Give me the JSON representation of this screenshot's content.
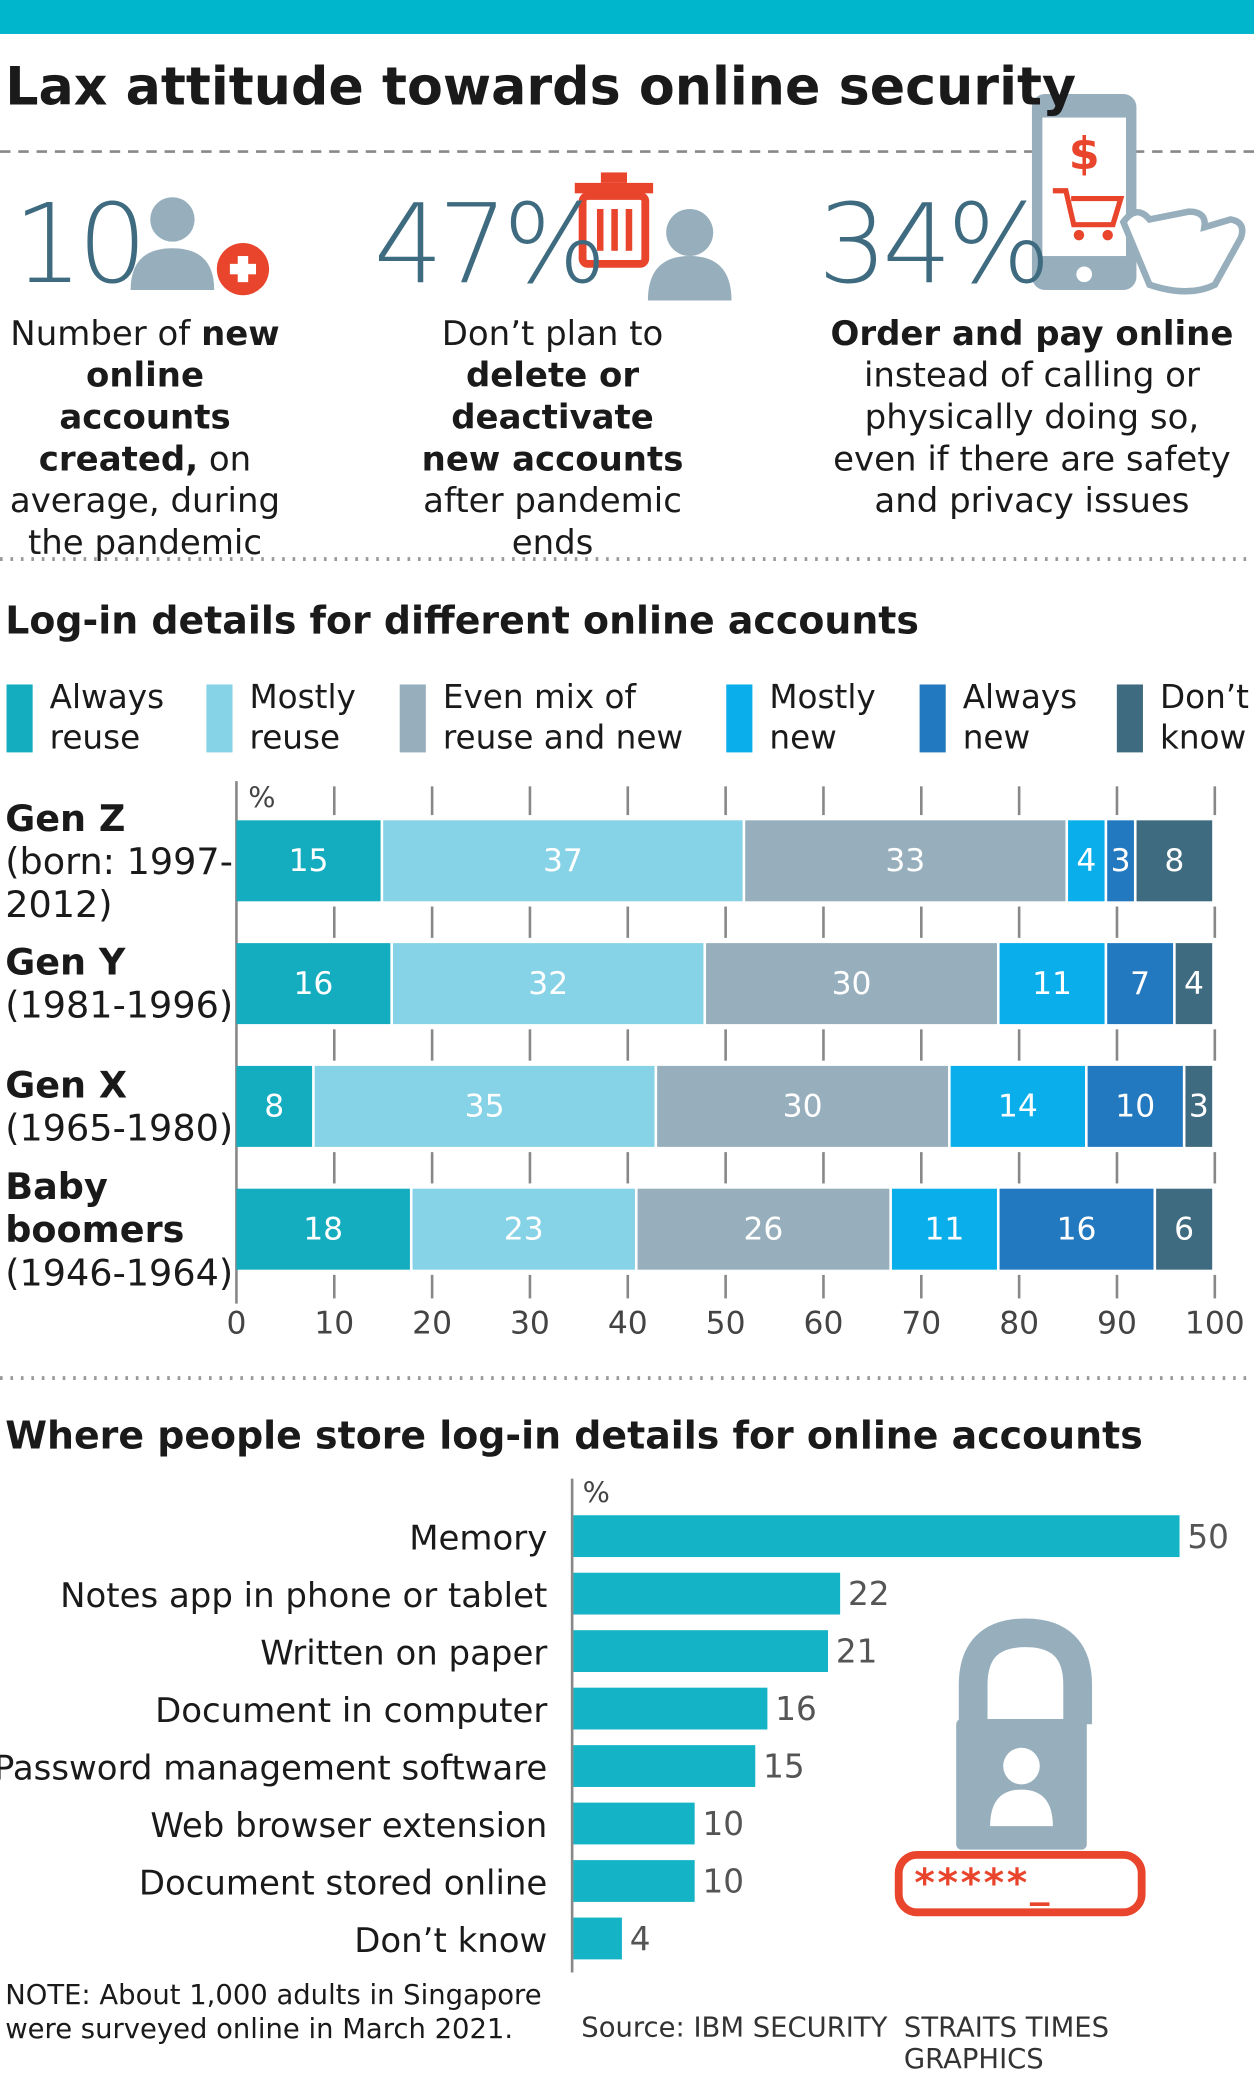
{
  "title": "Lax attitude towards online security",
  "stats": [
    {
      "value": "10",
      "text": [
        {
          "text": "Number of "
        },
        {
          "text": "new online accounts created,",
          "bold": true
        },
        {
          "text": " on average, during the pandemic"
        }
      ]
    },
    {
      "value": "47%",
      "text": [
        {
          "text": "Don’t plan to "
        },
        {
          "text": "delete or deactivate new accounts",
          "bold": true
        },
        {
          "text": " after pandemic ends"
        }
      ]
    },
    {
      "value": "34%",
      "text": [
        {
          "text": "Order and pay online",
          "bold": true
        },
        {
          "text": " instead of calling or physically doing so, even if there are safety and privacy issues"
        }
      ]
    }
  ],
  "chart_data": [
    {
      "type": "stacked-bar",
      "orientation": "horizontal",
      "title": "Log-in details for different online accounts",
      "unit": "%",
      "categories": [
        "Gen Z",
        "Gen Y",
        "Gen X",
        "Baby boomers"
      ],
      "category_notes": [
        "(born: 1997-2012)",
        "(1981-1996)",
        "(1965-1980)",
        "(1946-1964)"
      ],
      "series": [
        {
          "name": "Always reuse",
          "color": "#14adc0",
          "values": [
            15,
            16,
            8,
            18
          ]
        },
        {
          "name": "Mostly reuse",
          "color": "#86d2e6",
          "values": [
            37,
            32,
            35,
            23
          ]
        },
        {
          "name": "Even mix of reuse and new",
          "color": "#97afbd",
          "values": [
            33,
            30,
            30,
            26
          ]
        },
        {
          "name": "Mostly new",
          "color": "#0aaeea",
          "values": [
            4,
            11,
            14,
            11
          ]
        },
        {
          "name": "Always new",
          "color": "#2379bf",
          "values": [
            3,
            7,
            10,
            16
          ]
        },
        {
          "name": "Don’t know",
          "color": "#3f6b80",
          "values": [
            8,
            4,
            3,
            6
          ]
        }
      ],
      "xlim": [
        0,
        100
      ],
      "xticks": [
        0,
        10,
        20,
        30,
        40,
        50,
        60,
        70,
        80,
        90,
        100
      ]
    },
    {
      "type": "bar",
      "orientation": "horizontal",
      "title": "Where people store log-in details for online accounts",
      "unit": "%",
      "categories": [
        "Memory",
        "Notes app in phone or tablet",
        "Written on paper",
        "Document in computer",
        "Password management software",
        "Web browser extension",
        "Document stored online",
        "Don’t know"
      ],
      "values": [
        50,
        22,
        21,
        16,
        15,
        10,
        10,
        4
      ],
      "color": "#14b3c6",
      "xlim": [
        0,
        50
      ]
    }
  ],
  "note": "NOTE: About 1,000 adults in Singapore were surveyed online in March 2021.",
  "source": "Source: IBM SECURITY",
  "credit": "STRAITS TIMES GRAPHICS"
}
